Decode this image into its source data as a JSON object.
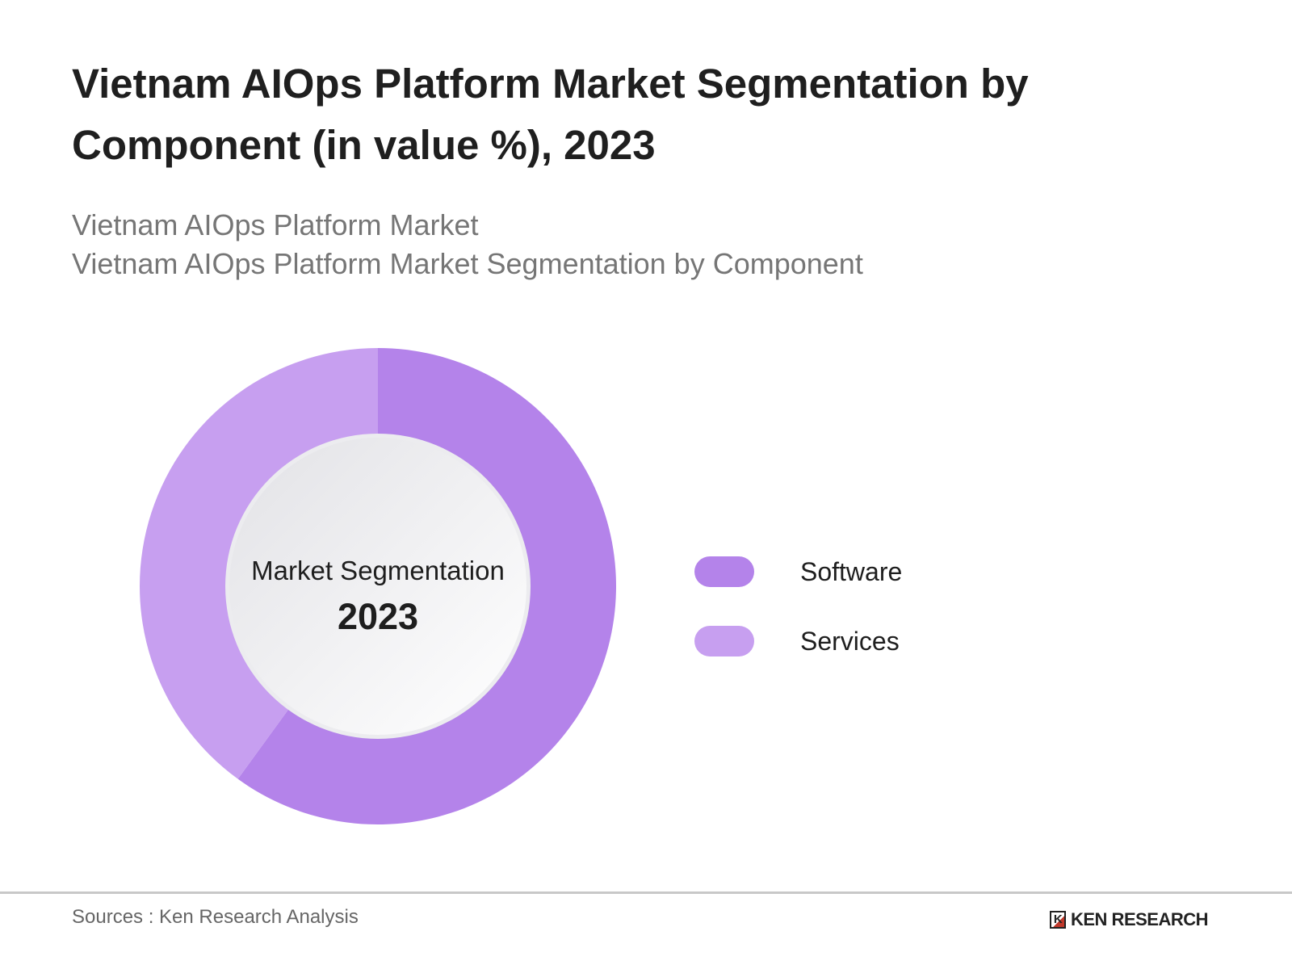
{
  "title": "Vietnam AIOps Platform Market Segmentation by Component (in value %), 2023",
  "subtitle_lines": [
    "Vietnam AIOps Platform Market",
    "Vietnam AIOps Platform Market Segmentation by Component"
  ],
  "chart_data": {
    "type": "pie",
    "variant": "donut",
    "center_label": "Market Segmentation",
    "center_year": "2023",
    "categories": [
      "Software",
      "Services"
    ],
    "values": [
      60,
      40
    ],
    "unit": "%",
    "colors": [
      "#b483ea",
      "#c79ff0"
    ],
    "legend_placement": "right"
  },
  "footer": {
    "source": "Sources : Ken Research Analysis",
    "logo_text": "KEN RESEARCH"
  }
}
